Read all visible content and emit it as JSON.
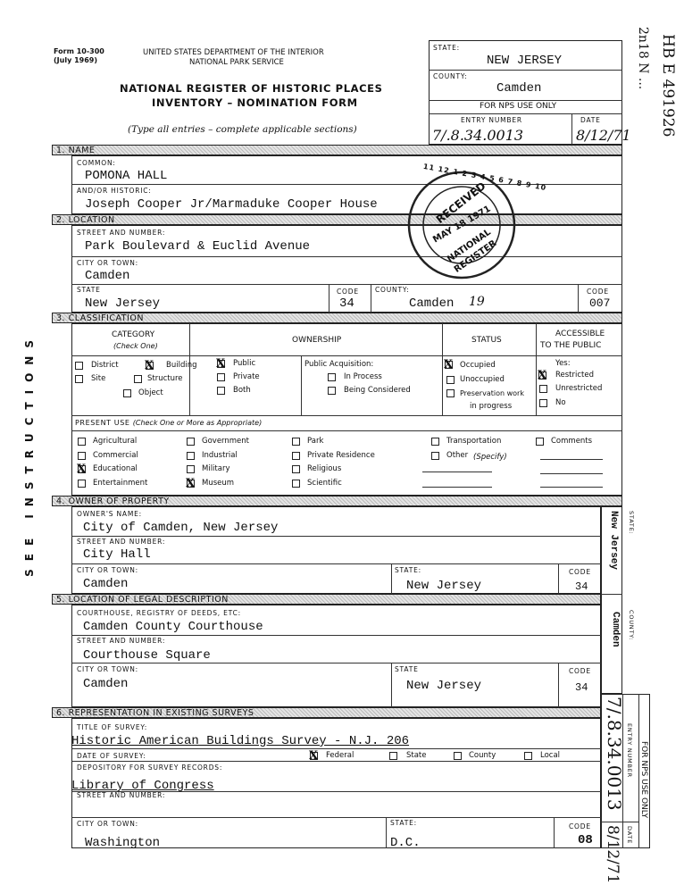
{
  "header": {
    "form_number": "Form 10-300",
    "form_date": "(July 1969)",
    "department": "UNITED STATES DEPARTMENT OF THE INTERIOR",
    "service": "NATIONAL PARK SERVICE",
    "title_line1": "NATIONAL REGISTER OF HISTORIC PLACES",
    "title_line2": "INVENTORY – NOMINATION FORM",
    "instructions": "(Type all entries – complete applicable sections)"
  },
  "nps_box": {
    "state_label": "STATE:",
    "state": "NEW JERSEY",
    "county_label": "COUNTY:",
    "county": "Camden",
    "nps_label": "FOR NPS USE ONLY",
    "entry_label": "ENTRY NUMBER",
    "date_label": "DATE",
    "entry_number": "7/.8.34.0013",
    "date": "8/12/71"
  },
  "margin_notes": {
    "left_instructions": "SEE INSTRUCTIONS",
    "handwritten_1": "HB  E 491926",
    "handwritten_2": "2n18  N ..."
  },
  "section1": {
    "heading": "1. NAME",
    "common_label": "COMMON:",
    "common": "POMONA HALL",
    "historic_label": "AND/OR HISTORIC:",
    "historic": "Joseph Cooper Jr/Marmaduke Cooper House"
  },
  "section2": {
    "heading": "2. LOCATION",
    "street_label": "STREET AND NUMBER:",
    "street": "Park Boulevard & Euclid Avenue",
    "city_label": "CITY OR TOWN:",
    "city": "Camden",
    "state_label": "STATE",
    "state": "New Jersey",
    "code_label": "CODE",
    "state_code": "34",
    "county_label": "COUNTY:",
    "county": "Camden",
    "county_hand_code": "19",
    "county_code": "007"
  },
  "stamp": {
    "top": "RECEIVED",
    "date": "MAY 18 1971",
    "line1": "NATIONAL",
    "line2": "REGISTER",
    "ring": "11 12 1 2 3 4 5 6 7 8 9 10"
  },
  "section3": {
    "heading": "3. CLASSIFICATION",
    "category_label": "CATEGORY",
    "category_sub": "(Check One)",
    "ownership_label": "OWNERSHIP",
    "status_label": "STATUS",
    "accessible_label1": "ACCESSIBLE",
    "accessible_label2": "TO THE PUBLIC",
    "category": [
      {
        "label": "District",
        "checked": false
      },
      {
        "label": "Building",
        "checked": true
      },
      {
        "label": "Site",
        "checked": false
      },
      {
        "label": "Structure",
        "checked": false
      },
      {
        "label": "Object",
        "checked": false
      }
    ],
    "ownership": [
      {
        "label": "Public",
        "checked": true
      },
      {
        "label": "Private",
        "checked": false
      },
      {
        "label": "Both",
        "checked": false
      }
    ],
    "acquisition_label": "Public Acquisition:",
    "acquisition": [
      {
        "label": "In Process",
        "checked": false
      },
      {
        "label": "Being Considered",
        "checked": false
      }
    ],
    "status": [
      {
        "label": "Occupied",
        "checked": true
      },
      {
        "label": "Unoccupied",
        "checked": false
      },
      {
        "label": "Preservation work",
        "checked": false
      }
    ],
    "status_cont": "in progress",
    "accessible_yes": "Yes:",
    "accessible": [
      {
        "label": "Restricted",
        "checked": true
      },
      {
        "label": "Unrestricted",
        "checked": false
      },
      {
        "label": "No",
        "checked": false
      }
    ],
    "present_use_label": "PRESENT USE",
    "present_use_sub": "(Check One or More as Appropriate)",
    "present_use": [
      {
        "label": "Agricultural",
        "checked": false
      },
      {
        "label": "Commercial",
        "checked": false
      },
      {
        "label": "Educational",
        "checked": true
      },
      {
        "label": "Entertainment",
        "checked": false
      },
      {
        "label": "Government",
        "checked": false
      },
      {
        "label": "Industrial",
        "checked": false
      },
      {
        "label": "Military",
        "checked": false
      },
      {
        "label": "Museum",
        "checked": true
      },
      {
        "label": "Park",
        "checked": false
      },
      {
        "label": "Private Residence",
        "checked": false
      },
      {
        "label": "Religious",
        "checked": false
      },
      {
        "label": "Scientific",
        "checked": false
      },
      {
        "label": "Transportation",
        "checked": false
      },
      {
        "label": "Other",
        "checked": false
      },
      {
        "label": "Comments",
        "checked": false
      }
    ],
    "other_specify": "(Specify)"
  },
  "section4": {
    "heading": "4. OWNER OF PROPERTY",
    "owner_label": "OWNER'S NAME:",
    "owner": "City of Camden, New Jersey",
    "street_label": "STREET AND NUMBER:",
    "street": "City Hall",
    "city_label": "CITY OR TOWN:",
    "city": "Camden",
    "state_label": "STATE:",
    "state": "New Jersey",
    "code_label": "CODE",
    "code": "34",
    "side_label": "STATE:",
    "side_value": "New Jersey"
  },
  "section5": {
    "heading": "5. LOCATION OF LEGAL DESCRIPTION",
    "courthouse_label": "COURTHOUSE, REGISTRY OF DEEDS, ETC:",
    "courthouse": "Camden County Courthouse",
    "street_label": "STREET AND NUMBER:",
    "street": "Courthouse Square",
    "city_label": "CITY OR TOWN:",
    "city": "Camden",
    "state_label": "STATE",
    "state": "New Jersey",
    "code_label": "CODE",
    "code": "34",
    "side_label": "COUNTY:",
    "side_value": "Camden"
  },
  "section6": {
    "heading": "6. REPRESENTATION IN EXISTING SURVEYS",
    "title_label": "TITLE OF SURVEY:",
    "title": "Historic American Buildings Survey - N.J. 206",
    "date_label": "DATE OF SURVEY:",
    "levels": [
      {
        "label": "Federal",
        "checked": true
      },
      {
        "label": "State",
        "checked": false
      },
      {
        "label": "County",
        "checked": false
      },
      {
        "label": "Local",
        "checked": false
      }
    ],
    "depository_label": "DEPOSITORY FOR SURVEY RECORDS:",
    "depository": "Library of Congress",
    "street_label": "STREET AND NUMBER:",
    "city_label": "CITY OR TOWN:",
    "city": "Washington",
    "state_label": "STATE:",
    "state": "D.C.",
    "code_label": "CODE",
    "code": "08",
    "side_entry_label": "ENTRY NUMBER",
    "side_date_label": "DATE",
    "side_nps_label": "FOR NPS USE ONLY",
    "side_entry": "7/.8.34.0013",
    "side_date": "8/12/71"
  }
}
